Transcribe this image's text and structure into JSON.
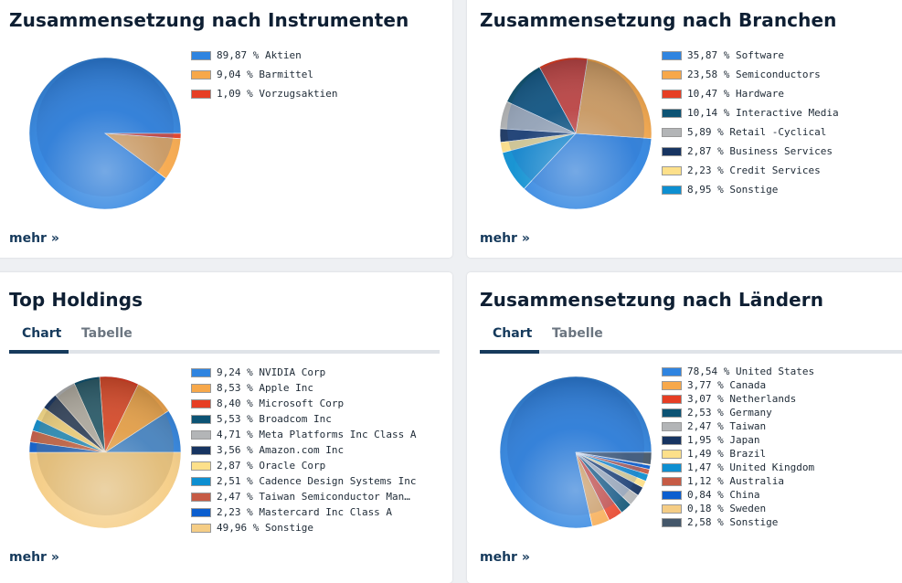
{
  "more_link": "mehr",
  "tabs": [
    "Chart",
    "Tabelle"
  ],
  "chart_data": [
    {
      "type": "pie",
      "title": "Zusammensetzung nach Instrumenten",
      "labels": [
        "89,87 % Aktien",
        "9,04 % Barmittel",
        "1,09 % Vorzugsaktien"
      ],
      "values": [
        89.87,
        9.04,
        1.09
      ],
      "colors": [
        "#2f84e0",
        "#f7a84a",
        "#e63e24"
      ]
    },
    {
      "type": "pie",
      "title": "Zusammensetzung nach Branchen",
      "labels": [
        "35,87 % Software",
        "23,58 % Semiconductors",
        "10,47 % Hardware",
        "10,14 % Interactive Media",
        "5,89 % Retail -Cyclical",
        "2,87 % Business Services",
        "2,23 % Credit Services",
        "8,95 % Sonstige"
      ],
      "values": [
        35.87,
        23.58,
        10.47,
        10.14,
        5.89,
        2.87,
        2.23,
        8.95
      ],
      "colors": [
        "#2f84e0",
        "#f7a84a",
        "#e63e24",
        "#0c5374",
        "#b3b5b7",
        "#173461",
        "#fde08a",
        "#0d8fd1"
      ]
    },
    {
      "type": "pie",
      "title": "Top Holdings",
      "labels": [
        "9,24 % NVIDIA Corp",
        "8,53 % Apple Inc",
        "8,40 % Microsoft Corp",
        "5,53 % Broadcom Inc",
        "4,71 % Meta Platforms Inc Class A",
        "3,56 % Amazon.com Inc",
        "2,87 % Oracle Corp",
        "2,51 % Cadence Design Systems Inc",
        "2,47 % Taiwan Semiconductor Man…",
        "2,23 % Mastercard Inc Class A",
        "49,96 % Sonstige"
      ],
      "values": [
        9.24,
        8.53,
        8.4,
        5.53,
        4.71,
        3.56,
        2.87,
        2.51,
        2.47,
        2.23,
        49.96
      ],
      "colors": [
        "#2f84e0",
        "#f7a84a",
        "#e63e24",
        "#0c5374",
        "#b3b5b7",
        "#173461",
        "#fde08a",
        "#0d8fd1",
        "#c65b45",
        "#0b5ecf",
        "#f5cd85"
      ]
    },
    {
      "type": "pie",
      "title": "Zusammensetzung nach Ländern",
      "labels": [
        "78,54 % United States",
        "3,77 % Canada",
        "3,07 % Netherlands",
        "2,53 % Germany",
        "2,47 % Taiwan",
        "1,95 % Japan",
        "1,49 % Brazil",
        "1,47 % United Kingdom",
        "1,12 % Australia",
        "0,84 % China",
        "0,18 % Sweden",
        "2,58 % Sonstige"
      ],
      "values": [
        78.54,
        3.77,
        3.07,
        2.53,
        2.47,
        1.95,
        1.49,
        1.47,
        1.12,
        0.84,
        0.18,
        2.58
      ],
      "colors": [
        "#2f84e0",
        "#f7a84a",
        "#e63e24",
        "#0c5374",
        "#b3b5b7",
        "#173461",
        "#fde08a",
        "#0d8fd1",
        "#c65b45",
        "#0b5ecf",
        "#f5cd85",
        "#44576a"
      ]
    }
  ]
}
